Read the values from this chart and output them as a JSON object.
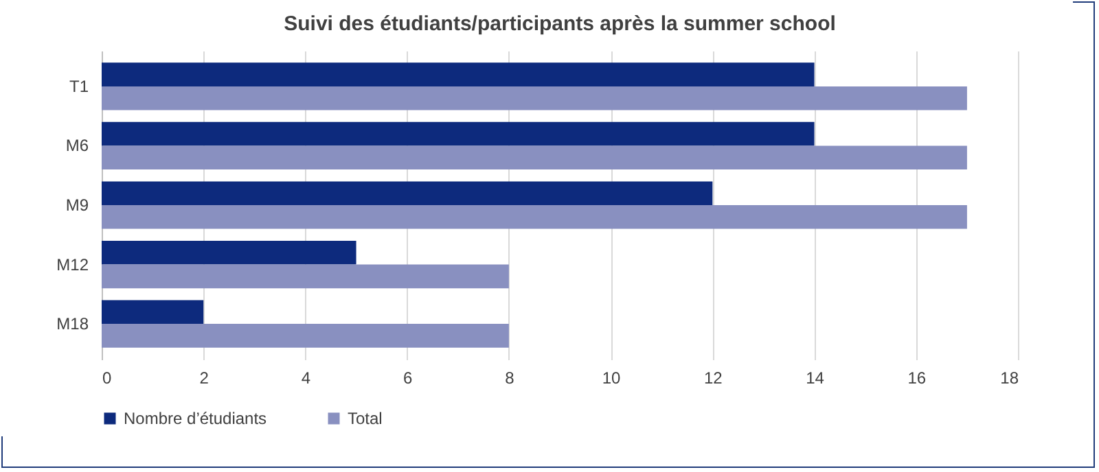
{
  "chart_data": {
    "type": "bar",
    "orientation": "horizontal",
    "title": "Suivi des étudiants/participants après la summer school",
    "categories": [
      "T1",
      "M6",
      "M9",
      "M12",
      "M18"
    ],
    "series": [
      {
        "name": "Nombre d’étudiants",
        "color": "#0d2a7d",
        "values": [
          14,
          14,
          12,
          5,
          2
        ]
      },
      {
        "name": "Total",
        "color": "#8990c0",
        "values": [
          17,
          17,
          17,
          8,
          8
        ]
      }
    ],
    "xlim": [
      0,
      18
    ],
    "xticks": [
      0,
      2,
      4,
      6,
      8,
      10,
      12,
      14,
      16,
      18
    ],
    "grid": "x",
    "legend": "bottom"
  }
}
